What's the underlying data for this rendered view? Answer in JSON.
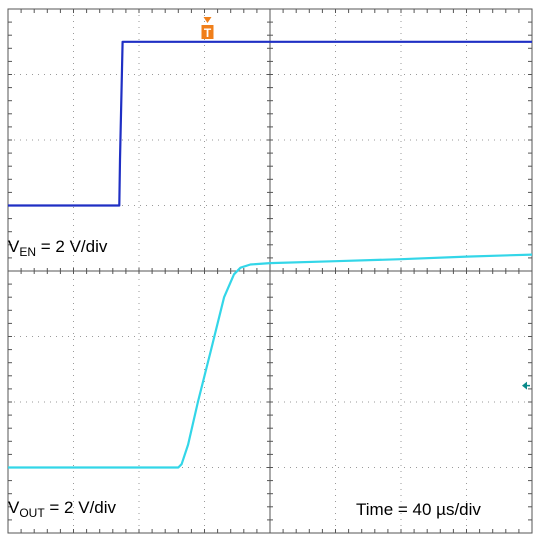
{
  "chart_data": {
    "type": "line",
    "grid": true,
    "divisions": {
      "x": 8,
      "y": 8
    },
    "x_unit": "div",
    "y_unit": "div",
    "xlim": [
      0,
      8
    ],
    "ylim": [
      0,
      8
    ],
    "series": [
      {
        "name": "V_EN",
        "color": "#1f2fc4",
        "x": [
          0,
          0.1,
          0.5,
          1.0,
          1.7,
          1.71,
          1.75,
          2.0,
          3.0,
          4.0,
          5.0,
          6.0,
          7.0,
          8.0
        ],
        "y": [
          5.0,
          5.0,
          5.0,
          5.0,
          5.0,
          5.7,
          7.5,
          7.5,
          7.5,
          7.5,
          7.5,
          7.5,
          7.5,
          7.5
        ]
      },
      {
        "name": "V_OUT",
        "color": "#33d6e8",
        "x": [
          0,
          0.5,
          1.0,
          2.0,
          2.6,
          2.65,
          2.75,
          2.9,
          3.1,
          3.3,
          3.45,
          3.55,
          3.7,
          4.0,
          5.0,
          6.0,
          7.0,
          8.0
        ],
        "y": [
          1.0,
          1.0,
          1.0,
          1.0,
          1.0,
          1.05,
          1.35,
          2.0,
          2.8,
          3.6,
          3.95,
          4.05,
          4.1,
          4.12,
          4.15,
          4.18,
          4.22,
          4.25
        ]
      }
    ],
    "annotations": {
      "ven_label_main": "V",
      "ven_label_sub": "EN",
      "ven_label_rest": " = 2 V/div",
      "vout_label_main": "V",
      "vout_label_sub": "OUT",
      "vout_label_rest": " = 2 V/div",
      "time_label": "Time = 40 µs/div",
      "trigger_marker": "T"
    },
    "marker_colors": {
      "trigger": "#f07f1a",
      "level": "#0a8a8a"
    }
  }
}
